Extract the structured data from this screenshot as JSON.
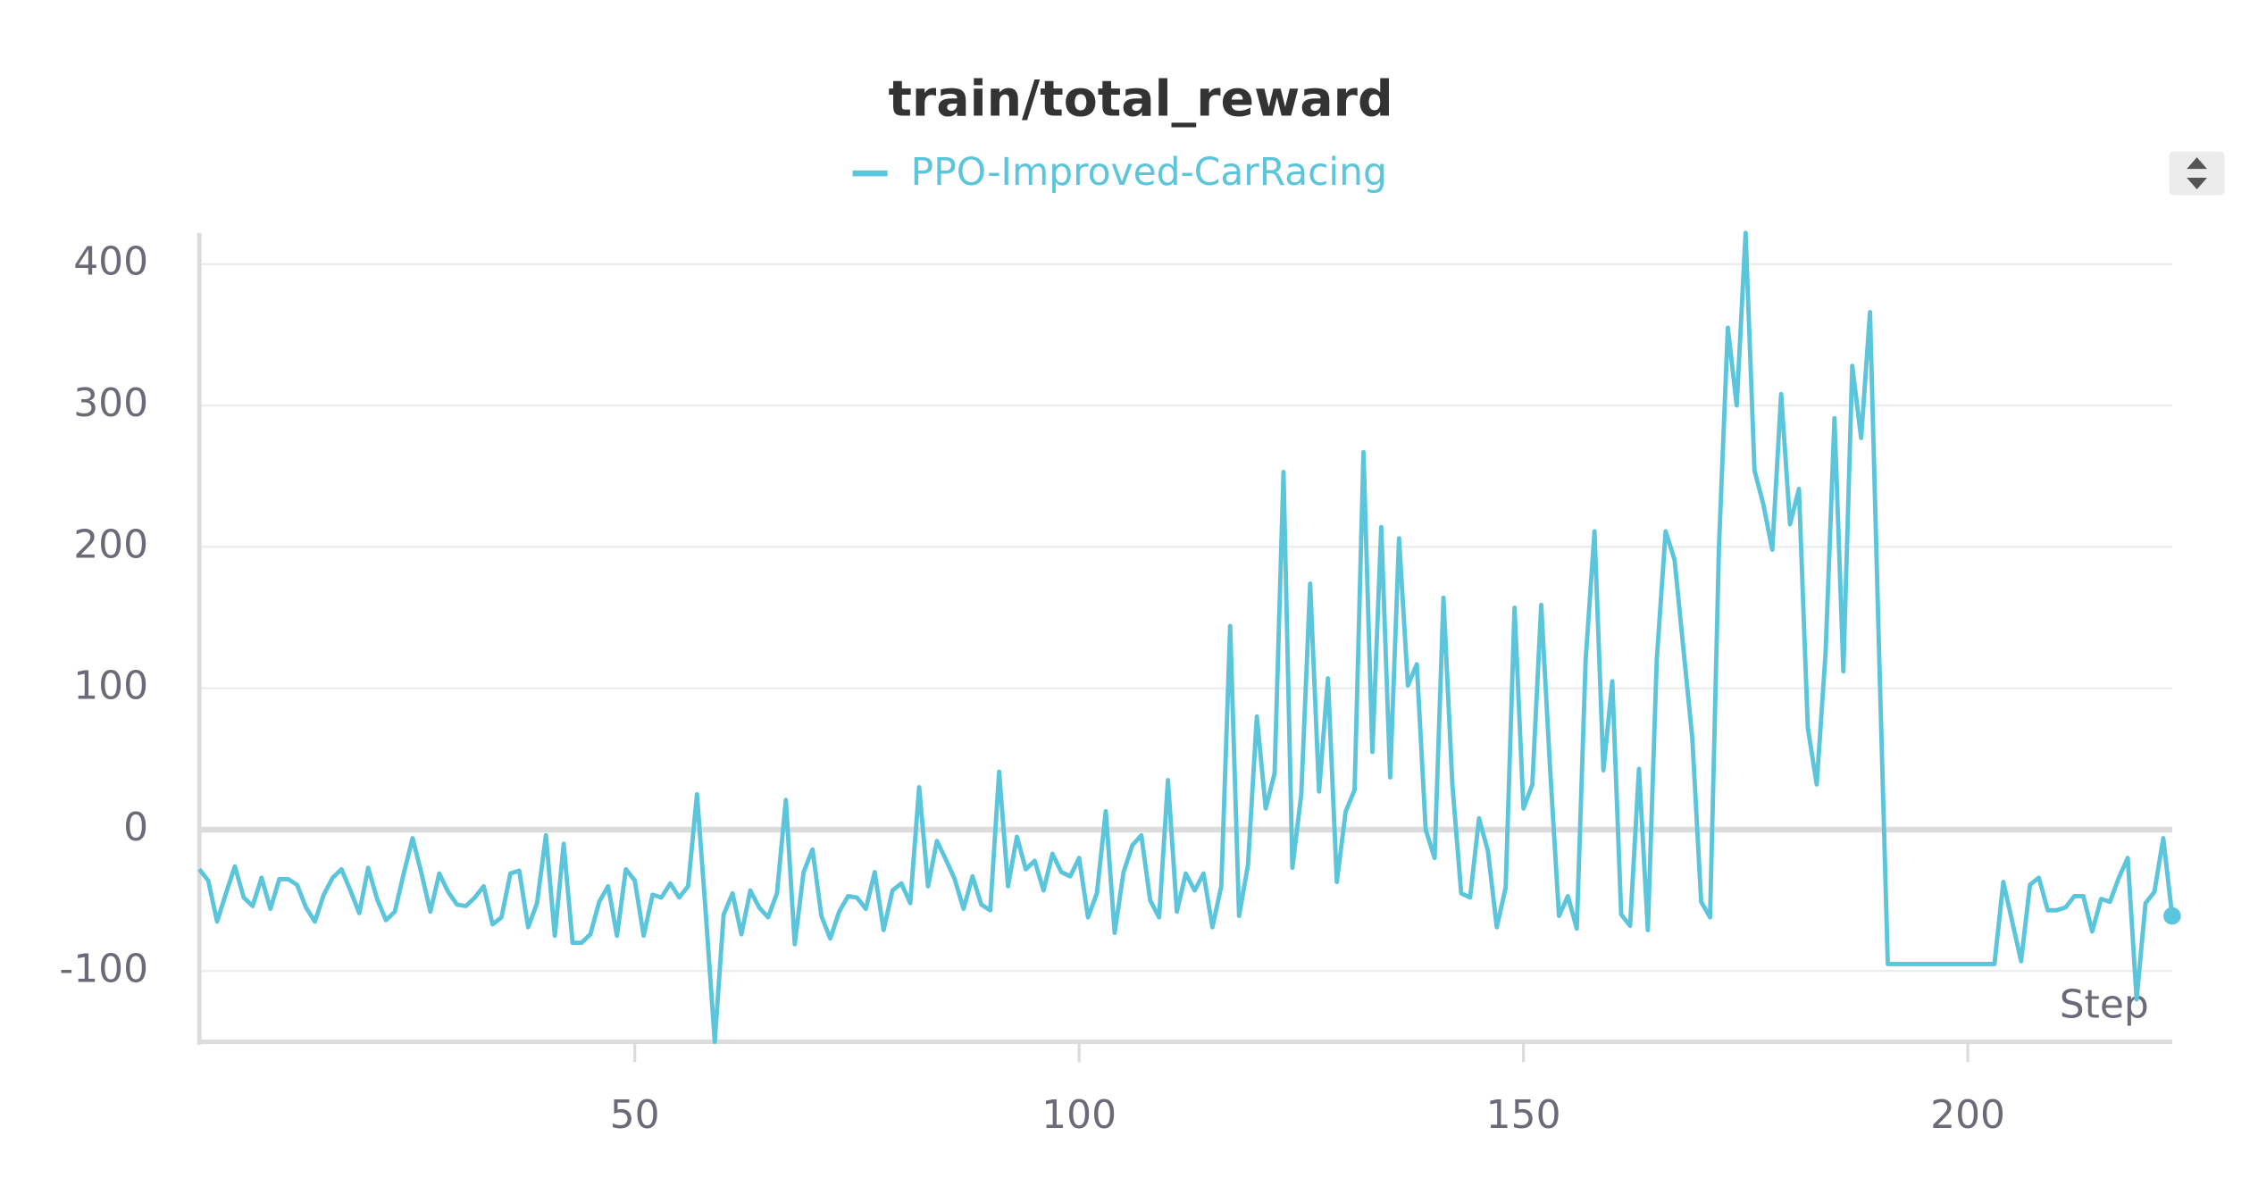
{
  "chart_data": {
    "type": "line",
    "title": "train/total_reward",
    "x_label": "Step",
    "x": [
      1,
      2,
      3,
      4,
      5,
      6,
      7,
      8,
      9,
      10,
      11,
      12,
      13,
      14,
      15,
      16,
      17,
      18,
      19,
      20,
      21,
      22,
      23,
      24,
      25,
      26,
      27,
      28,
      29,
      30,
      31,
      32,
      33,
      34,
      35,
      36,
      37,
      38,
      39,
      40,
      41,
      42,
      43,
      44,
      45,
      46,
      47,
      48,
      49,
      50,
      51,
      52,
      53,
      54,
      55,
      56,
      57,
      58,
      59,
      60,
      61,
      62,
      63,
      64,
      65,
      66,
      67,
      68,
      69,
      70,
      71,
      72,
      73,
      74,
      75,
      76,
      77,
      78,
      79,
      80,
      81,
      82,
      83,
      84,
      85,
      86,
      87,
      88,
      89,
      90,
      91,
      92,
      93,
      94,
      95,
      96,
      97,
      98,
      99,
      100,
      101,
      102,
      103,
      104,
      105,
      106,
      107,
      108,
      109,
      110,
      111,
      112,
      113,
      114,
      115,
      116,
      117,
      118,
      119,
      120,
      121,
      122,
      123,
      124,
      125,
      126,
      127,
      128,
      129,
      130,
      131,
      132,
      133,
      134,
      135,
      136,
      137,
      138,
      139,
      140,
      141,
      142,
      143,
      144,
      145,
      146,
      147,
      148,
      149,
      150,
      151,
      152,
      153,
      154,
      155,
      156,
      157,
      158,
      159,
      160,
      161,
      162,
      163,
      164,
      165,
      166,
      167,
      168,
      169,
      170,
      171,
      172,
      173,
      174,
      175,
      176,
      177,
      178,
      179,
      180,
      181,
      182,
      183,
      184,
      185,
      186,
      187,
      188,
      189,
      190,
      191,
      192,
      193,
      194,
      195,
      196,
      197,
      198,
      199,
      200,
      201,
      202,
      203,
      204,
      205,
      206,
      207,
      208,
      209,
      210,
      211,
      212,
      213,
      214,
      215,
      216,
      217,
      218,
      219,
      220,
      221,
      222,
      223
    ],
    "series": [
      {
        "name": "PPO-Improved-CarRacing",
        "color": "#5bc5db",
        "values": [
          -28,
          -36,
          -65,
          -45,
          -26,
          -48,
          -54,
          -34,
          -56,
          -35,
          -35,
          -39,
          -55,
          -65,
          -46,
          -34,
          -28,
          -43,
          -59,
          -27,
          -49,
          -64,
          -58,
          -31,
          -6,
          -31,
          -58,
          -31,
          -44,
          -53,
          -54,
          -48,
          -40,
          -67,
          -62,
          -31,
          -29,
          -69,
          -52,
          -4,
          -75,
          -10,
          -80,
          -80,
          -74,
          -51,
          -40,
          -75,
          -28,
          -36,
          -75,
          -46,
          -48,
          -38,
          -48,
          -40,
          25,
          -60,
          -150,
          -60,
          -45,
          -74,
          -43,
          -55,
          -62,
          -45,
          21,
          -81,
          -30,
          -14,
          -61,
          -77,
          -58,
          -47,
          -48,
          -56,
          -30,
          -71,
          -43,
          -38,
          -52,
          30,
          -40,
          -8,
          -21,
          -35,
          -56,
          -33,
          -53,
          -57,
          41,
          -40,
          -5,
          -28,
          -22,
          -43,
          -17,
          -30,
          -33,
          -20,
          -62,
          -45,
          13,
          -73,
          -30,
          -11,
          -4,
          -50,
          -62,
          35,
          -58,
          -31,
          -43,
          -31,
          -69,
          -40,
          144,
          -61,
          -25,
          80,
          15,
          40,
          253,
          -27,
          25,
          174,
          27,
          107,
          -37,
          13,
          28,
          267,
          55,
          214,
          37,
          206,
          102,
          117,
          0,
          -20,
          164,
          32,
          -45,
          -48,
          8,
          -15,
          -69,
          -41,
          157,
          15,
          32,
          159,
          43,
          -61,
          -47,
          -70,
          120,
          211,
          42,
          105,
          -60,
          -68,
          43,
          -71,
          120,
          211,
          191,
          128,
          65,
          -51,
          -62,
          200,
          355,
          300,
          422,
          254,
          230,
          198,
          308,
          216,
          241,
          72,
          32,
          125,
          291,
          112,
          328,
          277,
          366,
          130,
          -95,
          -95,
          -95,
          -95,
          -95,
          -95,
          -95,
          -95,
          -95,
          -95,
          -95,
          -95,
          -95,
          -37,
          -65,
          -93,
          -39,
          -34,
          -57,
          -57,
          -55,
          -47,
          -47,
          -72,
          -49,
          -51,
          -34,
          -20,
          -120,
          -52,
          -44,
          -6,
          -61
        ]
      }
    ],
    "xlim": [
      1,
      223
    ],
    "xticks": [
      50,
      100,
      150,
      200
    ],
    "ylim": [
      -150,
      422
    ],
    "yticks": [
      -100,
      0,
      100,
      200,
      300,
      400
    ],
    "grid": true
  }
}
